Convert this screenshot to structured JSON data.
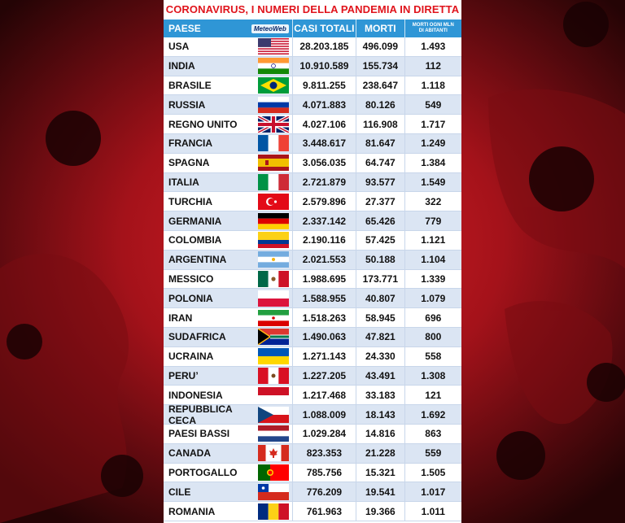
{
  "title": "CORONAVIRUS, I NUMERI DELLA PANDEMIA IN DIRETTA",
  "logo_text": "MeteoWeb",
  "colors": {
    "title": "#e0141c",
    "header_bg": "#2f96d6",
    "row_alt": "#dbe5f3"
  },
  "headers": {
    "paese": "PAESE",
    "casi": "CASI TOTALI",
    "morti": "MORTI",
    "mil_line1": "MORTI OGNI MLN",
    "mil_line2": "DI ABITANTI"
  },
  "rows": [
    {
      "name": "USA",
      "flag": "usa",
      "casi": "28.203.185",
      "morti": "496.099",
      "mil": "1.493"
    },
    {
      "name": "INDIA",
      "flag": "india",
      "casi": "10.910.589",
      "morti": "155.734",
      "mil": "112"
    },
    {
      "name": "BRASILE",
      "flag": "brazil",
      "casi": "9.811.255",
      "morti": "238.647",
      "mil": "1.118"
    },
    {
      "name": "RUSSIA",
      "flag": "russia",
      "casi": "4.071.883",
      "morti": "80.126",
      "mil": "549"
    },
    {
      "name": "REGNO UNITO",
      "flag": "uk",
      "casi": "4.027.106",
      "morti": "116.908",
      "mil": "1.717"
    },
    {
      "name": "FRANCIA",
      "flag": "france",
      "casi": "3.448.617",
      "morti": "81.647",
      "mil": "1.249"
    },
    {
      "name": "SPAGNA",
      "flag": "spain",
      "casi": "3.056.035",
      "morti": "64.747",
      "mil": "1.384"
    },
    {
      "name": "ITALIA",
      "flag": "italy",
      "casi": "2.721.879",
      "morti": "93.577",
      "mil": "1.549"
    },
    {
      "name": "TURCHIA",
      "flag": "turkey",
      "casi": "2.579.896",
      "morti": "27.377",
      "mil": "322"
    },
    {
      "name": "GERMANIA",
      "flag": "germany",
      "casi": "2.337.142",
      "morti": "65.426",
      "mil": "779"
    },
    {
      "name": "COLOMBIA",
      "flag": "colombia",
      "casi": "2.190.116",
      "morti": "57.425",
      "mil": "1.121"
    },
    {
      "name": "ARGENTINA",
      "flag": "argentina",
      "casi": "2.021.553",
      "morti": "50.188",
      "mil": "1.104"
    },
    {
      "name": "MESSICO",
      "flag": "mexico",
      "casi": "1.988.695",
      "morti": "173.771",
      "mil": "1.339"
    },
    {
      "name": "POLONIA",
      "flag": "poland",
      "casi": "1.588.955",
      "morti": "40.807",
      "mil": "1.079"
    },
    {
      "name": "IRAN",
      "flag": "iran",
      "casi": "1.518.263",
      "morti": "58.945",
      "mil": "696"
    },
    {
      "name": "SUDAFRICA",
      "flag": "southafrica",
      "casi": "1.490.063",
      "morti": "47.821",
      "mil": "800"
    },
    {
      "name": "UCRAINA",
      "flag": "ukraine",
      "casi": "1.271.143",
      "morti": "24.330",
      "mil": "558"
    },
    {
      "name": "PERU’",
      "flag": "peru",
      "casi": "1.227.205",
      "morti": "43.491",
      "mil": "1.308"
    },
    {
      "name": "INDONESIA",
      "flag": "indonesia",
      "casi": "1.217.468",
      "morti": "33.183",
      "mil": "121"
    },
    {
      "name": "REPUBBLICA CECA",
      "flag": "czech",
      "casi": "1.088.009",
      "morti": "18.143",
      "mil": "1.692"
    },
    {
      "name": "PAESI BASSI",
      "flag": "netherlands",
      "casi": "1.029.284",
      "morti": "14.816",
      "mil": "863"
    },
    {
      "name": "CANADA",
      "flag": "canada",
      "casi": "823.353",
      "morti": "21.228",
      "mil": "559"
    },
    {
      "name": "PORTOGALLO",
      "flag": "portugal",
      "casi": "785.756",
      "morti": "15.321",
      "mil": "1.505"
    },
    {
      "name": "CILE",
      "flag": "chile",
      "casi": "776.209",
      "morti": "19.541",
      "mil": "1.017"
    },
    {
      "name": "ROMANIA",
      "flag": "romania",
      "casi": "761.963",
      "morti": "19.366",
      "mil": "1.011"
    }
  ]
}
